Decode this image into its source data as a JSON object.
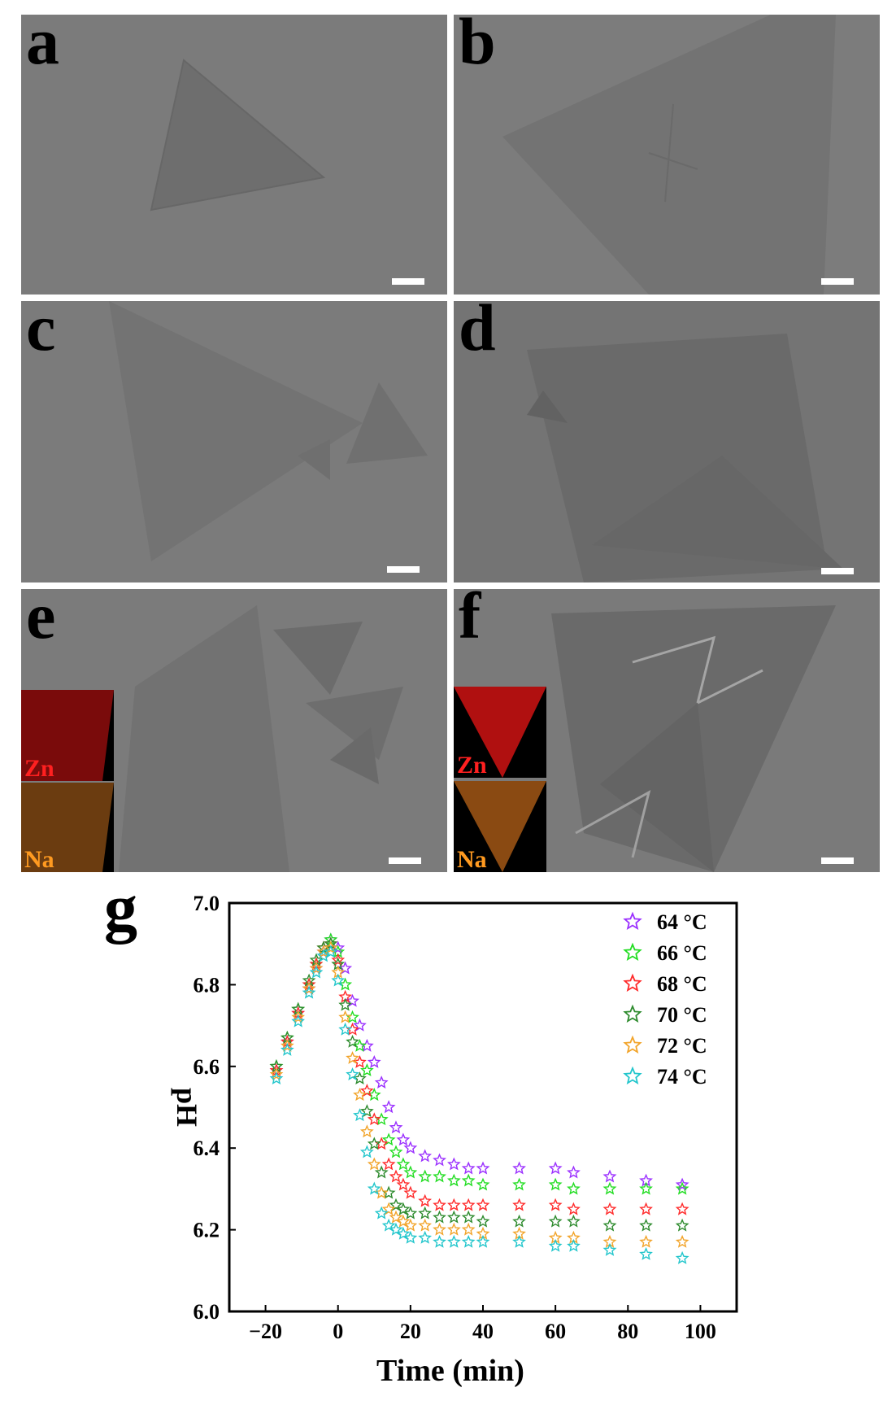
{
  "panels": [
    {
      "label": "a"
    },
    {
      "label": "b"
    },
    {
      "label": "c"
    },
    {
      "label": "d"
    },
    {
      "label": "e",
      "insets": [
        {
          "element": "Zn",
          "color": "#ff2020"
        },
        {
          "element": "Na",
          "color": "#ff9a20"
        }
      ]
    },
    {
      "label": "f",
      "insets": [
        {
          "element": "Zn",
          "color": "#ff2020"
        },
        {
          "element": "Na",
          "color": "#ff9a20"
        }
      ]
    },
    {
      "label": "g"
    }
  ],
  "chart_data": {
    "type": "scatter",
    "xlabel": "Time (min)",
    "ylabel": "pH",
    "xlim": [
      -30,
      110
    ],
    "ylim": [
      6.0,
      7.0
    ],
    "xticks": [
      -20,
      0,
      20,
      40,
      60,
      80,
      100
    ],
    "yticks": [
      6.0,
      6.2,
      6.4,
      6.6,
      6.8,
      7.0
    ],
    "legend_position": "top-right",
    "marker": "star-open",
    "series": [
      {
        "name": "64 °C",
        "color": "#9b30ff",
        "x": [
          -17,
          -14,
          -11,
          -8,
          -6,
          -4,
          -2,
          0,
          2,
          4,
          6,
          8,
          10,
          12,
          14,
          16,
          18,
          20,
          24,
          28,
          32,
          36,
          40,
          50,
          60,
          65,
          75,
          85,
          95
        ],
        "y": [
          6.59,
          6.66,
          6.73,
          6.79,
          6.84,
          6.88,
          6.91,
          6.89,
          6.84,
          6.76,
          6.7,
          6.65,
          6.61,
          6.56,
          6.5,
          6.45,
          6.42,
          6.4,
          6.38,
          6.37,
          6.36,
          6.35,
          6.35,
          6.35,
          6.35,
          6.34,
          6.33,
          6.32,
          6.31
        ]
      },
      {
        "name": "66 °C",
        "color": "#22dd22",
        "x": [
          -17,
          -14,
          -11,
          -8,
          -6,
          -4,
          -2,
          0,
          2,
          4,
          6,
          8,
          10,
          12,
          14,
          16,
          18,
          20,
          24,
          28,
          32,
          36,
          40,
          50,
          60,
          65,
          75,
          85,
          95
        ],
        "y": [
          6.6,
          6.67,
          6.74,
          6.8,
          6.85,
          6.89,
          6.91,
          6.88,
          6.8,
          6.72,
          6.65,
          6.59,
          6.53,
          6.47,
          6.42,
          6.39,
          6.36,
          6.34,
          6.33,
          6.33,
          6.32,
          6.32,
          6.31,
          6.31,
          6.31,
          6.3,
          6.3,
          6.3,
          6.3
        ]
      },
      {
        "name": "68 °C",
        "color": "#ff2a2a",
        "x": [
          -17,
          -14,
          -11,
          -8,
          -6,
          -4,
          -2,
          0,
          2,
          4,
          6,
          8,
          10,
          12,
          14,
          16,
          18,
          20,
          24,
          28,
          32,
          36,
          40,
          50,
          60,
          65,
          75,
          85,
          95
        ],
        "y": [
          6.59,
          6.66,
          6.73,
          6.8,
          6.85,
          6.89,
          6.9,
          6.86,
          6.77,
          6.69,
          6.61,
          6.54,
          6.47,
          6.41,
          6.36,
          6.33,
          6.31,
          6.29,
          6.27,
          6.26,
          6.26,
          6.26,
          6.26,
          6.26,
          6.26,
          6.25,
          6.25,
          6.25,
          6.25
        ]
      },
      {
        "name": "70 °C",
        "color": "#2e8b2e",
        "x": [
          -17,
          -14,
          -11,
          -8,
          -6,
          -4,
          -2,
          0,
          2,
          4,
          6,
          8,
          10,
          12,
          14,
          16,
          18,
          20,
          24,
          28,
          32,
          36,
          40,
          50,
          60,
          65,
          75,
          85,
          95
        ],
        "y": [
          6.6,
          6.67,
          6.74,
          6.81,
          6.86,
          6.89,
          6.9,
          6.85,
          6.75,
          6.66,
          6.57,
          6.49,
          6.41,
          6.34,
          6.29,
          6.26,
          6.25,
          6.24,
          6.24,
          6.23,
          6.23,
          6.23,
          6.22,
          6.22,
          6.22,
          6.22,
          6.21,
          6.21,
          6.21
        ]
      },
      {
        "name": "72 °C",
        "color": "#f2a42a",
        "x": [
          -17,
          -14,
          -11,
          -8,
          -6,
          -4,
          -2,
          0,
          2,
          4,
          6,
          8,
          10,
          12,
          14,
          16,
          18,
          20,
          24,
          28,
          32,
          36,
          40,
          50,
          60,
          65,
          75,
          85,
          95
        ],
        "y": [
          6.58,
          6.65,
          6.72,
          6.79,
          6.84,
          6.88,
          6.89,
          6.83,
          6.72,
          6.62,
          6.53,
          6.44,
          6.36,
          6.29,
          6.25,
          6.23,
          6.22,
          6.21,
          6.21,
          6.2,
          6.2,
          6.2,
          6.19,
          6.19,
          6.18,
          6.18,
          6.17,
          6.17,
          6.17
        ]
      },
      {
        "name": "74 °C",
        "color": "#22c6cc",
        "x": [
          -17,
          -14,
          -11,
          -8,
          -6,
          -4,
          -2,
          0,
          2,
          4,
          6,
          8,
          10,
          12,
          14,
          16,
          18,
          20,
          24,
          28,
          32,
          36,
          40,
          50,
          60,
          65,
          75,
          85,
          95
        ],
        "y": [
          6.57,
          6.64,
          6.71,
          6.78,
          6.83,
          6.87,
          6.88,
          6.81,
          6.69,
          6.58,
          6.48,
          6.39,
          6.3,
          6.24,
          6.21,
          6.2,
          6.19,
          6.18,
          6.18,
          6.17,
          6.17,
          6.17,
          6.17,
          6.17,
          6.16,
          6.16,
          6.15,
          6.14,
          6.13
        ]
      }
    ]
  }
}
